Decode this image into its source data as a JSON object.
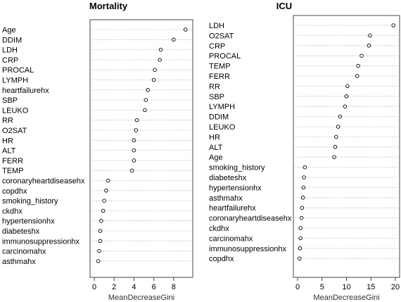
{
  "chart_data": [
    {
      "type": "scatter",
      "title": "Mortality",
      "xlabel": "MeanDecreaseGini",
      "xlim": [
        0,
        9.5
      ],
      "xticks": [
        0,
        2,
        4,
        6,
        8
      ],
      "grid": "dotted horizontal",
      "categories": [
        "Age",
        "DDIM",
        "LDH",
        "CRP",
        "PROCAL",
        "LYMPH",
        "heartfailurehx",
        "SBP",
        "LEUKO",
        "RR",
        "O2SAT",
        "HR",
        "ALT",
        "FERR",
        "TEMP",
        "coronaryheartdiseasehx",
        "copdhx",
        "smoking_history",
        "ckdhx",
        "hypertensionhx",
        "diabeteshx",
        "immunosuppressionhx",
        "carcinomahx",
        "asthmahx"
      ],
      "values": [
        9.2,
        8.0,
        6.7,
        6.6,
        6.1,
        6.0,
        5.4,
        5.2,
        5.1,
        4.3,
        4.2,
        4.0,
        4.0,
        4.0,
        3.8,
        1.4,
        1.2,
        1.0,
        0.9,
        0.7,
        0.6,
        0.6,
        0.5,
        0.4
      ]
    },
    {
      "type": "scatter",
      "title": "ICU",
      "xlabel": "MeanDecreaseGini",
      "xlim": [
        0,
        20
      ],
      "xticks": [
        0,
        5,
        10,
        15,
        20
      ],
      "grid": "dotted horizontal",
      "categories": [
        "LDH",
        "O2SAT",
        "CRP",
        "PROCAL",
        "TEMP",
        "FERR",
        "RR",
        "SBP",
        "LYMPH",
        "DDIM",
        "LEUKO",
        "HR",
        "ALT",
        "Age",
        "smoking_history",
        "diabeteshx",
        "hypertensionhx",
        "asthmahx",
        "heartfailurehx",
        "coronaryheartdiseasehx",
        "ckdhx",
        "carcinomahx",
        "immunosuppressionhx",
        "copdhx"
      ],
      "values": [
        19.6,
        14.8,
        14.6,
        13.1,
        12.4,
        12.2,
        10.2,
        10.0,
        9.7,
        8.7,
        8.3,
        7.9,
        7.7,
        7.5,
        1.5,
        1.3,
        1.2,
        1.1,
        0.9,
        0.8,
        0.6,
        0.6,
        0.5,
        0.4
      ]
    }
  ]
}
